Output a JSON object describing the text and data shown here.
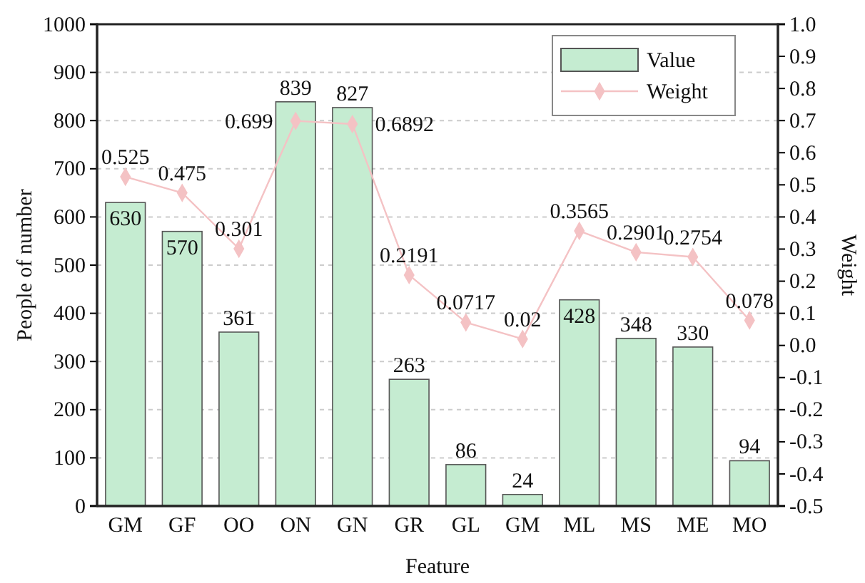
{
  "chart_data": {
    "type": "bar",
    "xlabel": "Feature",
    "ylabel": "People of number",
    "y2label": "Weight",
    "categories": [
      "GM",
      "GF",
      "OO",
      "ON",
      "GN",
      "GR",
      "GL",
      "GM",
      "ML",
      "MS",
      "ME",
      "MO"
    ],
    "series": [
      {
        "name": "Value",
        "color": "#c5ecd1",
        "values": [
          630,
          570,
          361,
          839,
          827,
          263,
          86,
          24,
          428,
          348,
          330,
          94
        ]
      },
      {
        "name": "Weight",
        "type": "line",
        "axis": "y2",
        "color": "#f4c2c4",
        "marker": "diamond",
        "values": [
          0.525,
          0.475,
          0.301,
          0.699,
          0.6892,
          0.2191,
          0.0717,
          0.02,
          0.3565,
          0.2901,
          0.2754,
          0.078
        ]
      }
    ],
    "ylim": [
      0,
      1000
    ],
    "yticks": [
      0,
      100,
      200,
      300,
      400,
      500,
      600,
      700,
      800,
      900,
      1000
    ],
    "y2lim": [
      -0.5,
      1.0
    ],
    "y2ticks": [
      -0.5,
      -0.4,
      -0.3,
      -0.2,
      -0.1,
      {
        "value": 0,
        "label": "0.0"
      },
      0.1,
      0.2,
      0.3,
      0.4,
      0.5,
      0.6,
      0.7,
      0.8,
      0.9,
      {
        "value": 1,
        "label": "1.0"
      }
    ],
    "data_labels": true,
    "grid": "y",
    "legend": "top right"
  }
}
